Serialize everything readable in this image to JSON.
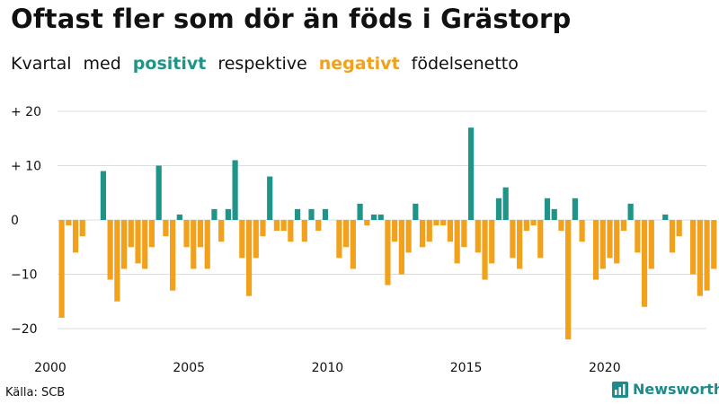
{
  "header": {
    "title": "Oftast fler som dör än föds i Grästorp",
    "subtitle_words": [
      "Kvartal",
      "med",
      "positivt",
      "respektive",
      "negativt",
      "födelsenetto"
    ]
  },
  "colors": {
    "positive": "#1f9488",
    "negative": "#f2a11c",
    "grid": "#dddddd",
    "brand": "#1f8a8a"
  },
  "footer": {
    "source": "Källa: SCB",
    "brand": "Newsworthy",
    "brand_icon": "newsworthy-logo-icon"
  },
  "chart_data": {
    "type": "bar",
    "title": "Oftast fler som dör än föds i Grästorp",
    "subtitle": "Kvartal med positivt respektive negativt födelsenetto",
    "period": "quarter",
    "x_start": "2000 Q1",
    "x_tick_labels": [
      "2000",
      "2005",
      "2010",
      "2015",
      "2020"
    ],
    "y_tick_values": [
      20,
      10,
      0,
      -10,
      -20
    ],
    "y_tick_labels": [
      "+ 20",
      "+ 10",
      "0",
      "−10",
      "−20"
    ],
    "ylim": [
      -22,
      20
    ],
    "grid": true,
    "legend": "inline in subtitle (positivt = teal, negativt = orange)",
    "values": [
      -18,
      -1,
      -6,
      -3,
      0,
      0,
      9,
      -11,
      -15,
      -9,
      -5,
      -8,
      -9,
      -5,
      10,
      -3,
      -13,
      1,
      -5,
      -9,
      -5,
      -9,
      2,
      -4,
      2,
      11,
      -7,
      -14,
      -7,
      -3,
      8,
      -2,
      -2,
      -4,
      2,
      -4,
      2,
      -2,
      2,
      0,
      -7,
      -5,
      -9,
      3,
      -1,
      1,
      1,
      -12,
      -4,
      -10,
      -6,
      3,
      -5,
      -4,
      -1,
      -1,
      -4,
      -8,
      -5,
      17,
      -6,
      -11,
      -8,
      4,
      6,
      -7,
      -9,
      -2,
      -1,
      -7,
      4,
      2,
      -2,
      -22,
      4,
      -4,
      0,
      -11,
      -9,
      -7,
      -8,
      -2,
      3,
      -6,
      -16,
      -9,
      0,
      1,
      -6,
      -3,
      0,
      -10,
      -14,
      -13,
      -9
    ]
  }
}
